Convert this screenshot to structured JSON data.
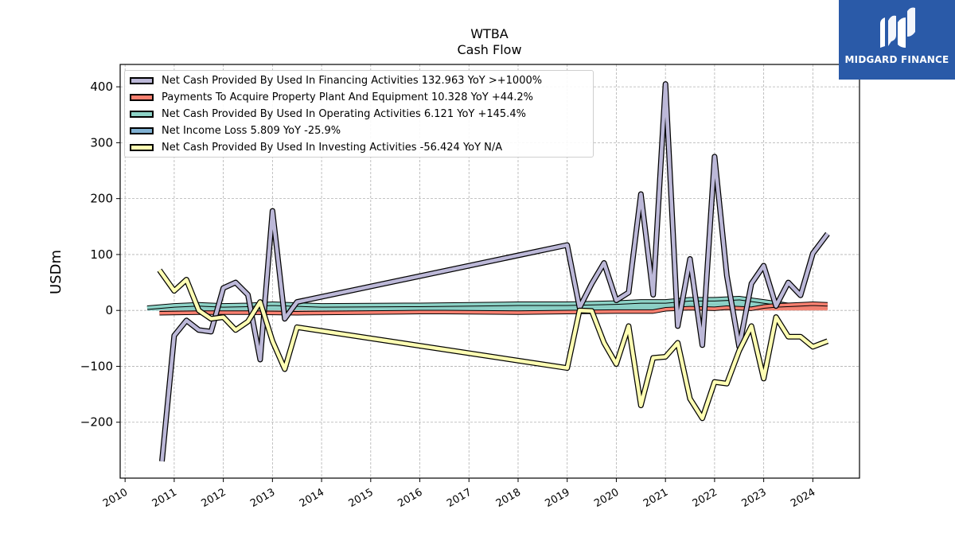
{
  "title": "WTBA",
  "subtitle": "Cash Flow",
  "logo": {
    "text": "MIDGARD FINANCE",
    "bg": "#2a5aa8",
    "icon": "midgard-logo-icon"
  },
  "chart_data": {
    "type": "line",
    "ylabel": "USDm",
    "xlabel": "",
    "xlim": [
      2009.9,
      2024.95
    ],
    "ylim": [
      -300,
      440
    ],
    "yticks": [
      -200,
      -100,
      0,
      100,
      200,
      300,
      400
    ],
    "ytick_labels": [
      "−200",
      "−100",
      "0",
      "100",
      "200",
      "300",
      "400"
    ],
    "xticks": [
      2010,
      2011,
      2012,
      2013,
      2014,
      2015,
      2016,
      2017,
      2018,
      2019,
      2020,
      2021,
      2022,
      2023,
      2024
    ],
    "xtick_labels": [
      "2010",
      "2011",
      "2012",
      "2013",
      "2014",
      "2015",
      "2016",
      "2017",
      "2018",
      "2019",
      "2020",
      "2021",
      "2022",
      "2023",
      "2024"
    ],
    "grid": true,
    "legend_position": "top-left",
    "series": [
      {
        "name": "Net Cash Provided By Used In Financing Activities",
        "legend": "Net Cash Provided By Used In Financing Activities  132.963 YoY >+1000%",
        "color": "#bcb8d8",
        "style": "line",
        "points": [
          [
            2010.75,
            -270
          ],
          [
            2011.0,
            -45
          ],
          [
            2011.25,
            -18
          ],
          [
            2011.5,
            -35
          ],
          [
            2011.75,
            -38
          ],
          [
            2012.0,
            40
          ],
          [
            2012.25,
            50
          ],
          [
            2012.5,
            28
          ],
          [
            2012.75,
            -88
          ],
          [
            2013.0,
            178
          ],
          [
            2013.25,
            -15
          ],
          [
            2013.5,
            15
          ],
          [
            2019.0,
            117
          ],
          [
            2019.25,
            5
          ],
          [
            2019.5,
            48
          ],
          [
            2019.75,
            85
          ],
          [
            2020.0,
            18
          ],
          [
            2020.25,
            32
          ],
          [
            2020.5,
            208
          ],
          [
            2020.75,
            28
          ],
          [
            2021.0,
            405
          ],
          [
            2021.25,
            -28
          ],
          [
            2021.5,
            92
          ],
          [
            2021.75,
            -62
          ],
          [
            2022.0,
            275
          ],
          [
            2022.25,
            62
          ],
          [
            2022.5,
            -65
          ],
          [
            2022.75,
            48
          ],
          [
            2023.0,
            80
          ],
          [
            2023.25,
            8
          ],
          [
            2023.5,
            50
          ],
          [
            2023.75,
            27
          ],
          [
            2024.0,
            102
          ],
          [
            2024.3,
            137
          ]
        ]
      },
      {
        "name": "Payments To Acquire Property Plant And Equipment",
        "legend": "Payments To Acquire Property Plant And Equipment  10.328 YoY +44.2%",
        "color": "#fa8070",
        "style": "band",
        "points": [
          [
            2010.7,
            -5
          ],
          [
            2011.5,
            -4
          ],
          [
            2012.5,
            -4
          ],
          [
            2013.5,
            -5
          ],
          [
            2016.0,
            -3
          ],
          [
            2016.5,
            -3
          ],
          [
            2018.0,
            -4
          ],
          [
            2019.0,
            -3
          ],
          [
            2020.0,
            -2
          ],
          [
            2020.75,
            -2
          ],
          [
            2021.0,
            2
          ],
          [
            2021.5,
            4
          ],
          [
            2022.0,
            3
          ],
          [
            2022.25,
            5
          ],
          [
            2022.75,
            3
          ],
          [
            2023.0,
            7
          ],
          [
            2023.25,
            9
          ],
          [
            2024.0,
            12
          ],
          [
            2024.3,
            11
          ]
        ]
      },
      {
        "name": "Net Cash Provided By Used In Operating Activities",
        "legend": "Net Cash Provided By Used In Operating Activities  6.121 YoY +145.4%",
        "color": "#8dd3c7",
        "style": "band",
        "points": [
          [
            2010.45,
            5
          ],
          [
            2011.0,
            9
          ],
          [
            2011.5,
            11
          ],
          [
            2012.0,
            9
          ],
          [
            2012.5,
            10
          ],
          [
            2013.0,
            12
          ],
          [
            2014.0,
            9
          ],
          [
            2016.0,
            10
          ],
          [
            2018.0,
            12
          ],
          [
            2019.0,
            12
          ],
          [
            2020.0,
            14
          ],
          [
            2020.5,
            16
          ],
          [
            2021.0,
            16
          ],
          [
            2021.5,
            20
          ],
          [
            2022.0,
            20
          ],
          [
            2022.5,
            22
          ],
          [
            2023.0,
            16
          ],
          [
            2023.5,
            10
          ],
          [
            2024.0,
            8
          ],
          [
            2024.3,
            7
          ]
        ]
      },
      {
        "name": "Net Income Loss",
        "legend": "Net Income Loss  5.809 YoY -25.9%",
        "color": "#80b1d3",
        "style": "band",
        "points": [
          [
            2010.45,
            4
          ],
          [
            2011.0,
            6
          ],
          [
            2012.0,
            6
          ],
          [
            2013.0,
            6
          ],
          [
            2014.0,
            7
          ],
          [
            2015.0,
            8
          ],
          [
            2016.0,
            8
          ],
          [
            2018.0,
            9
          ],
          [
            2019.0,
            9
          ],
          [
            2020.0,
            9
          ],
          [
            2020.75,
            9
          ],
          [
            2021.0,
            12
          ],
          [
            2021.5,
            14
          ],
          [
            2022.0,
            14
          ],
          [
            2022.5,
            13
          ],
          [
            2023.0,
            9
          ],
          [
            2023.5,
            7
          ],
          [
            2024.0,
            6
          ],
          [
            2024.3,
            6
          ]
        ]
      },
      {
        "name": "Net Cash Provided By Used In Investing Activities",
        "legend": "Net Cash Provided By Used In Investing Activities  -56.424 YoY N/A",
        "color": "#ffffb3",
        "style": "line",
        "points": [
          [
            2010.7,
            72
          ],
          [
            2011.0,
            35
          ],
          [
            2011.25,
            55
          ],
          [
            2011.5,
            0
          ],
          [
            2011.75,
            -15
          ],
          [
            2012.0,
            -12
          ],
          [
            2012.25,
            -35
          ],
          [
            2012.5,
            -20
          ],
          [
            2012.75,
            15
          ],
          [
            2013.0,
            -55
          ],
          [
            2013.25,
            -105
          ],
          [
            2013.5,
            -30
          ],
          [
            2019.0,
            -103
          ],
          [
            2019.25,
            0
          ],
          [
            2019.5,
            -1
          ],
          [
            2019.75,
            -58
          ],
          [
            2020.0,
            -96
          ],
          [
            2020.25,
            -28
          ],
          [
            2020.5,
            -170
          ],
          [
            2020.75,
            -85
          ],
          [
            2021.0,
            -83
          ],
          [
            2021.25,
            -58
          ],
          [
            2021.5,
            -158
          ],
          [
            2021.75,
            -193
          ],
          [
            2022.0,
            -128
          ],
          [
            2022.25,
            -131
          ],
          [
            2022.5,
            -72
          ],
          [
            2022.75,
            -28
          ],
          [
            2023.0,
            -122
          ],
          [
            2023.25,
            -12
          ],
          [
            2023.5,
            -47
          ],
          [
            2023.75,
            -47
          ],
          [
            2024.0,
            -65
          ],
          [
            2024.3,
            -55
          ]
        ]
      }
    ]
  }
}
